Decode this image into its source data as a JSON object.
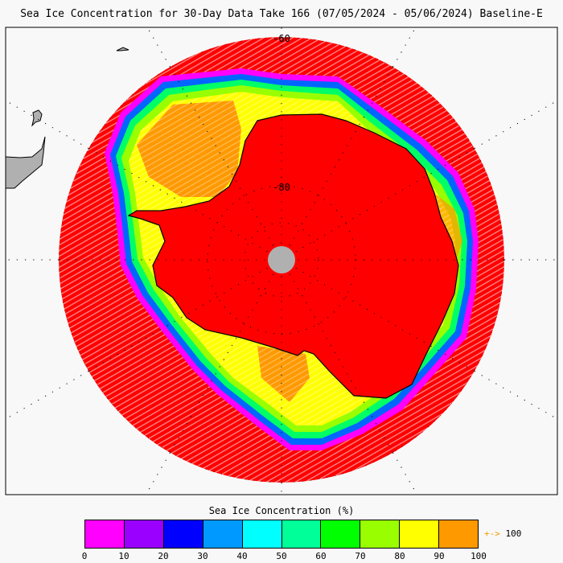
{
  "title": "Sea Ice Concentration for 30-Day Data Take 166 (07/05/2024 - 05/06/2024) Baseline-E",
  "map": {
    "projection": "south-polar-stereographic",
    "lat_labels": [
      "-60",
      "-80"
    ],
    "colors": {
      "open_water": "#ff0000",
      "land": "#b0b0b0",
      "pole_hole": "#b0b0b0",
      "background": "#f8f8f8"
    }
  },
  "colorbar": {
    "title": "Sea Ice Concentration (%)",
    "ticks": [
      "0",
      "10",
      "20",
      "30",
      "40",
      "50",
      "60",
      "70",
      "80",
      "90",
      "100"
    ],
    "colors": [
      "#ff00ff",
      "#9900ff",
      "#0000ff",
      "#0099ff",
      "#00ffff",
      "#00ff99",
      "#00ff00",
      "#99ff00",
      "#ffff00",
      "#ff9900"
    ],
    "overflow_arrow": "+->",
    "overflow_value": "100"
  }
}
